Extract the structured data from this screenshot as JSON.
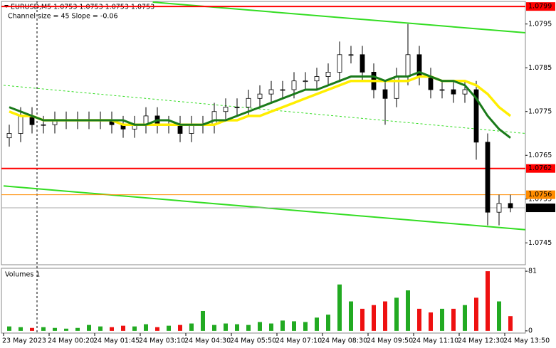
{
  "chart_data": [
    {
      "type": "candlestick",
      "title": "EURUSD,M5 1.0753 1.0753 1.0753 1.0753",
      "subtitle": "Channel size = 45 Slope = -0.06",
      "categories": [
        "23 May 2023",
        null,
        null,
        null,
        "24 May 00:20",
        null,
        null,
        null,
        "24 May 01:45",
        null,
        null,
        null,
        "24 May 03:10",
        null,
        null,
        null,
        "24 May 04:30",
        null,
        null,
        null,
        "24 May 05:50",
        null,
        null,
        null,
        "24 May 07:10",
        null,
        null,
        null,
        "24 May 08:30",
        null,
        null,
        null,
        "24 May 09:50",
        null,
        null,
        null,
        "24 May 11:10",
        null,
        null,
        null,
        "24 May 12:30",
        null,
        null,
        null,
        "24 May 13:50"
      ],
      "open": [
        1.0769,
        1.077,
        1.0774,
        1.0772,
        1.0772,
        1.0773,
        1.0773,
        1.0773,
        1.0773,
        1.0773,
        1.0772,
        1.0771,
        1.0772,
        1.0774,
        1.0772,
        1.0772,
        1.077,
        1.0772,
        1.0772,
        1.0775,
        1.0776,
        1.0776,
        1.0778,
        1.0779,
        1.078,
        1.078,
        1.0782,
        1.0782,
        1.0783,
        1.0784,
        1.0788,
        1.0788,
        1.0784,
        1.078,
        1.0778,
        1.0783,
        1.0788,
        1.0783,
        1.078,
        1.078,
        1.0779,
        1.078,
        1.0768,
        1.0752,
        1.0754
      ],
      "high": [
        1.0772,
        1.0776,
        1.0776,
        1.0774,
        1.0775,
        1.0775,
        1.0775,
        1.0775,
        1.0775,
        1.0775,
        1.0774,
        1.0774,
        1.0776,
        1.0776,
        1.0774,
        1.0774,
        1.0774,
        1.0774,
        1.0777,
        1.0778,
        1.0778,
        1.078,
        1.0781,
        1.0782,
        1.0782,
        1.0784,
        1.0784,
        1.0785,
        1.0786,
        1.0791,
        1.079,
        1.079,
        1.0786,
        1.0782,
        1.0785,
        1.0795,
        1.079,
        1.0785,
        1.0782,
        1.0782,
        1.0782,
        1.0782,
        1.077,
        1.0756,
        1.0756
      ],
      "low": [
        1.0767,
        1.0768,
        1.077,
        1.077,
        1.077,
        1.0771,
        1.0771,
        1.0771,
        1.0771,
        1.077,
        1.0769,
        1.0769,
        1.077,
        1.077,
        1.077,
        1.0768,
        1.0768,
        1.077,
        1.077,
        1.0773,
        1.0774,
        1.0774,
        1.0776,
        1.0777,
        1.0778,
        1.0778,
        1.078,
        1.078,
        1.0781,
        1.0782,
        1.0786,
        1.0782,
        1.0778,
        1.0772,
        1.0776,
        1.0781,
        1.0781,
        1.0778,
        1.0778,
        1.0777,
        1.0777,
        1.0764,
        1.0749,
        1.0749,
        1.0752
      ],
      "close": [
        1.077,
        1.0774,
        1.0772,
        1.0772,
        1.0773,
        1.0773,
        1.0773,
        1.0773,
        1.0773,
        1.0772,
        1.0771,
        1.0772,
        1.0774,
        1.0772,
        1.0772,
        1.077,
        1.0772,
        1.0772,
        1.0775,
        1.0776,
        1.0776,
        1.0778,
        1.0779,
        1.078,
        1.078,
        1.0782,
        1.0782,
        1.0783,
        1.0784,
        1.0788,
        1.0788,
        1.0784,
        1.078,
        1.0778,
        1.0783,
        1.0788,
        1.0783,
        1.078,
        1.078,
        1.0779,
        1.078,
        1.0768,
        1.0752,
        1.0754,
        1.0753
      ],
      "overlays": [
        {
          "color": "#ffee00",
          "width": 3.5,
          "values": [
            1.0775,
            1.0774,
            1.0774,
            1.0773,
            1.0773,
            1.0773,
            1.0773,
            1.0773,
            1.0773,
            1.0773,
            1.0772,
            1.0772,
            1.0772,
            1.0772,
            1.0772,
            1.0772,
            1.0772,
            1.0772,
            1.0772,
            1.0773,
            1.0773,
            1.0774,
            1.0774,
            1.0775,
            1.0776,
            1.0777,
            1.0778,
            1.0779,
            1.078,
            1.0781,
            1.0782,
            1.0782,
            1.0782,
            1.0782,
            1.0782,
            1.0782,
            1.0783,
            1.0783,
            1.0782,
            1.0782,
            1.0782,
            1.0781,
            1.0779,
            1.0776,
            1.0774
          ]
        },
        {
          "color": "#1a7a1a",
          "width": 3,
          "values": [
            1.0776,
            1.0775,
            1.0774,
            1.0773,
            1.0773,
            1.0773,
            1.0773,
            1.0773,
            1.0773,
            1.0773,
            1.0773,
            1.0772,
            1.0772,
            1.0773,
            1.0773,
            1.0772,
            1.0772,
            1.0772,
            1.0773,
            1.0773,
            1.0774,
            1.0775,
            1.0776,
            1.0777,
            1.0778,
            1.0779,
            1.078,
            1.078,
            1.0781,
            1.0782,
            1.0783,
            1.0783,
            1.0783,
            1.0782,
            1.0783,
            1.0783,
            1.0784,
            1.0783,
            1.0782,
            1.0782,
            1.0781,
            1.0778,
            1.0774,
            1.0771,
            1.0769
          ]
        }
      ],
      "trendlines": [
        {
          "x": [
            12.6,
            45.3
          ],
          "values": [
            1.08,
            1.0793
          ],
          "color": "#33dd22",
          "dashed": false
        },
        {
          "x": [
            -0.5,
            45.3
          ],
          "values": [
            1.0758,
            1.0748
          ],
          "color": "#33dd22",
          "dashed": false
        },
        {
          "x": [
            -0.5,
            45.3
          ],
          "values": [
            1.0781,
            1.077
          ],
          "color": "#33dd22",
          "dashed": true
        }
      ],
      "levels": [
        {
          "value": 1.0799,
          "color": "#ff0000"
        },
        {
          "value": 1.0762,
          "color": "#ff0000"
        },
        {
          "value": 1.0756,
          "color": "#ff8c00"
        },
        {
          "value": 1.0753,
          "color": "#000000"
        }
      ],
      "ylim": [
        1.074,
        1.08
      ],
      "yticks": [
        1.0745,
        1.0755,
        1.0765,
        1.0775,
        1.0785,
        1.0795
      ],
      "grid": false
    },
    {
      "type": "bar",
      "title": "Volumes 1",
      "values": [
        6,
        5,
        4,
        5,
        4,
        3,
        4,
        8,
        6,
        5,
        7,
        6,
        9,
        5,
        7,
        8,
        10,
        27,
        8,
        10,
        9,
        8,
        12,
        10,
        14,
        13,
        12,
        18,
        22,
        63,
        40,
        30,
        35,
        40,
        45,
        55,
        30,
        25,
        30,
        30,
        35,
        45,
        81,
        40,
        20
      ],
      "up_color": "#22aa22",
      "down_color": "#ee1111",
      "ylim": [
        -3,
        84
      ],
      "yticks": [
        0,
        81
      ]
    }
  ]
}
